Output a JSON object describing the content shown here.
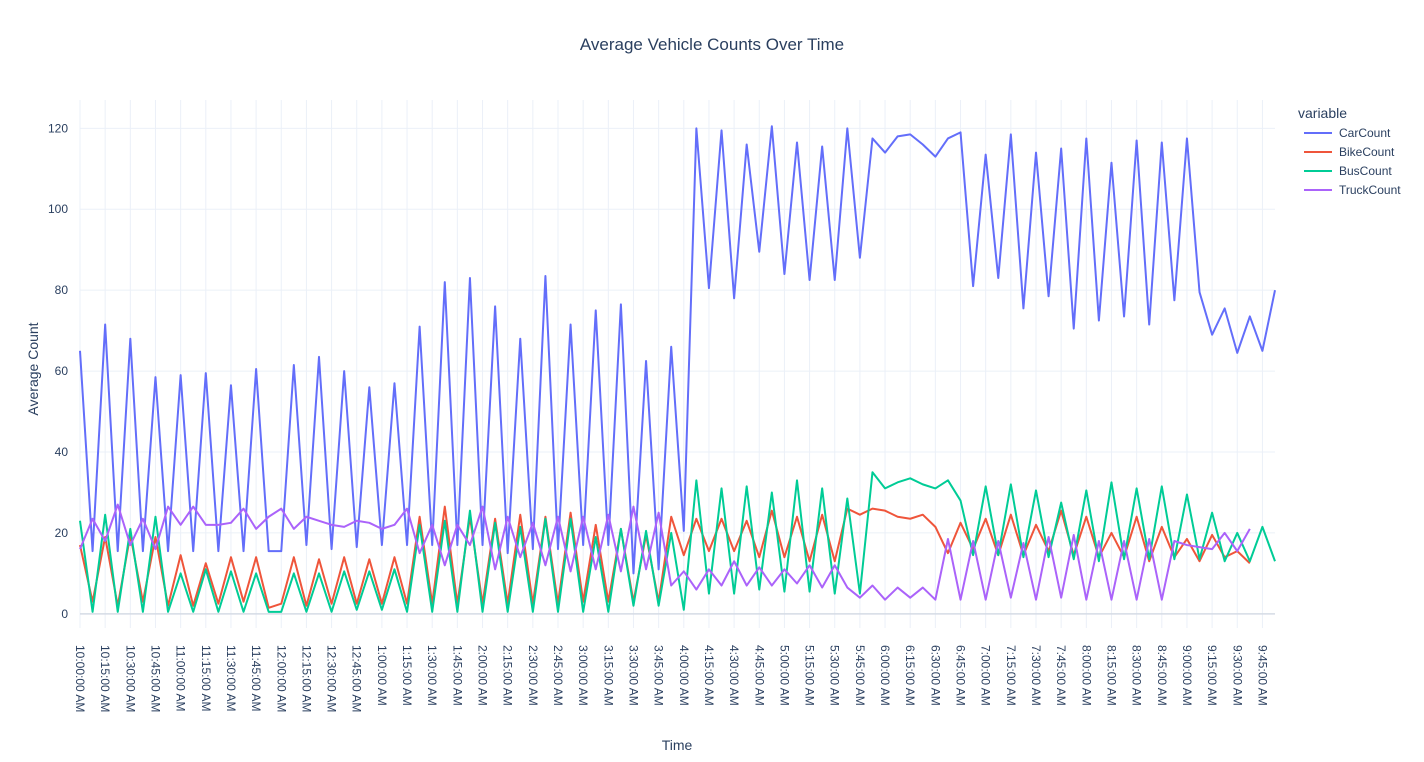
{
  "chart_data": {
    "type": "line",
    "title": "Average Vehicle Counts Over Time",
    "xlabel": "Time",
    "ylabel": "Average Count",
    "ylim": [
      -3.5,
      127
    ],
    "yticks": [
      0,
      20,
      40,
      60,
      80,
      100,
      120
    ],
    "grid": true,
    "legend_title": "variable",
    "legend_position": "top-right",
    "x_tick_labels": [
      "10:00:00 AM",
      "10:15:00 AM",
      "10:30:00 AM",
      "10:45:00 AM",
      "11:00:00 AM",
      "11:15:00 AM",
      "11:30:00 AM",
      "11:45:00 AM",
      "12:00:00 AM",
      "12:15:00 AM",
      "12:30:00 AM",
      "12:45:00 AM",
      "1:00:00 AM",
      "1:15:00 AM",
      "1:30:00 AM",
      "1:45:00 AM",
      "2:00:00 AM",
      "2:15:00 AM",
      "2:30:00 AM",
      "2:45:00 AM",
      "3:00:00 AM",
      "3:15:00 AM",
      "3:30:00 AM",
      "3:45:00 AM",
      "4:00:00 AM",
      "4:15:00 AM",
      "4:30:00 AM",
      "4:45:00 AM",
      "5:00:00 AM",
      "5:15:00 AM",
      "5:30:00 AM",
      "5:45:00 AM",
      "6:00:00 AM",
      "6:15:00 AM",
      "6:30:00 AM",
      "6:45:00 AM",
      "7:00:00 AM",
      "7:15:00 AM",
      "7:30:00 AM",
      "7:45:00 AM",
      "8:00:00 AM",
      "8:15:00 AM",
      "8:30:00 AM",
      "8:45:00 AM",
      "9:00:00 AM",
      "9:15:00 AM",
      "9:30:00 AM",
      "9:45:00 AM"
    ],
    "series": [
      {
        "name": "CarCount",
        "color": "#636efa",
        "values": [
          65,
          15.5,
          71.5,
          15.5,
          68,
          15.5,
          58.5,
          15.5,
          59,
          15.5,
          59.5,
          15.5,
          56.5,
          15.5,
          60.5,
          15.5,
          15.5,
          61.5,
          17,
          63.5,
          16,
          60,
          16.5,
          56,
          17,
          57,
          17,
          71,
          17,
          82,
          17,
          83,
          17,
          76,
          15,
          68,
          16,
          83.5,
          16,
          71.5,
          17,
          75,
          17,
          76.5,
          10,
          62.5,
          11,
          66,
          20.5,
          120,
          80.5,
          119.5,
          78,
          116,
          89.5,
          120.5,
          84,
          116.5,
          82.5,
          115.5,
          82.5,
          120,
          88,
          117.5,
          114,
          118,
          118.5,
          116,
          113,
          117.5,
          119,
          81,
          113.5,
          83,
          118.5,
          75.5,
          114,
          78.5,
          115,
          70.5,
          117.5,
          72.5,
          111.5,
          73.5,
          117,
          71.5,
          116.5,
          77.5,
          117.5,
          79.5,
          69,
          75.5,
          64.5,
          73.5,
          65,
          80
        ]
      },
      {
        "name": "BikeCount",
        "color": "#EF553B",
        "values": [
          17,
          3,
          19,
          2,
          19.5,
          3,
          19,
          2,
          14.5,
          2,
          12.5,
          2.5,
          14,
          3,
          14,
          1.5,
          2.5,
          14,
          2,
          13.5,
          2.5,
          14,
          2.5,
          13.5,
          2.5,
          14,
          2.5,
          24,
          2.5,
          26.5,
          2.5,
          24,
          2.5,
          23.5,
          2.5,
          24.5,
          2.5,
          24,
          2.5,
          25,
          3,
          22,
          3,
          21,
          3,
          19.5,
          3,
          24,
          14.5,
          23.5,
          15.5,
          23.5,
          15.5,
          23,
          14,
          25.5,
          14,
          24,
          13,
          24.5,
          13,
          26,
          24.5,
          26,
          25.5,
          24,
          23.5,
          24.5,
          21.5,
          15,
          22.5,
          16,
          23.5,
          14.5,
          24.5,
          14.5,
          22,
          15.5,
          25.5,
          14.5,
          24,
          14,
          20,
          14,
          24,
          13,
          21.5,
          14,
          18.5,
          13,
          19.5,
          14,
          15.5,
          12.5
        ]
      },
      {
        "name": "BusCount",
        "color": "#00cc96",
        "values": [
          23,
          0.5,
          24.5,
          0.5,
          21,
          0.5,
          24,
          0.5,
          10,
          0.5,
          11,
          0.5,
          10.5,
          0.5,
          10,
          0.5,
          0.5,
          10,
          0.5,
          10,
          0.5,
          10.5,
          1,
          10.5,
          1,
          11,
          0.5,
          22,
          0.5,
          23,
          0.5,
          25.5,
          0.5,
          22.5,
          0.5,
          21.5,
          0.5,
          23.5,
          0.5,
          23.5,
          0.5,
          19,
          0.5,
          21,
          2,
          20.5,
          2,
          20,
          1,
          33,
          5,
          31,
          5,
          31.5,
          6,
          30,
          5.5,
          33,
          5.5,
          31,
          5,
          28.5,
          5,
          35,
          31,
          32.5,
          33.5,
          32,
          31,
          33,
          28,
          14.5,
          31.5,
          14.5,
          32,
          14,
          30.5,
          14,
          27.5,
          13.5,
          30.5,
          13,
          32.5,
          13.5,
          31,
          13.5,
          31.5,
          13.5,
          29.5,
          13.5,
          25,
          13,
          20,
          13,
          21.5,
          13
        ]
      },
      {
        "name": "TruckCount",
        "color": "#ab63fa",
        "values": [
          16,
          23.5,
          18,
          27,
          17,
          23.5,
          16,
          26.5,
          22,
          26.5,
          22,
          22,
          22.5,
          26,
          21,
          24,
          26,
          21,
          24,
          23,
          22,
          21.5,
          23,
          22.5,
          21,
          22,
          26,
          15,
          22,
          12,
          22,
          17,
          26.5,
          11,
          24,
          14,
          22.5,
          12,
          24,
          10.5,
          24,
          11,
          24.5,
          10.5,
          26.5,
          11,
          25,
          7,
          10.5,
          6,
          11,
          7,
          13,
          7,
          11.5,
          7,
          11,
          7.5,
          12,
          6.5,
          12,
          6.5,
          4,
          7,
          3.5,
          6.5,
          4,
          6.5,
          3.5,
          18.5,
          3.5,
          18,
          3.5,
          18,
          4,
          17.5,
          3.5,
          19,
          4,
          19.5,
          3.5,
          18,
          3.5,
          18,
          3.5,
          18.5,
          3.5,
          18,
          17,
          16.5,
          16,
          20,
          15.5,
          21
        ]
      }
    ]
  }
}
